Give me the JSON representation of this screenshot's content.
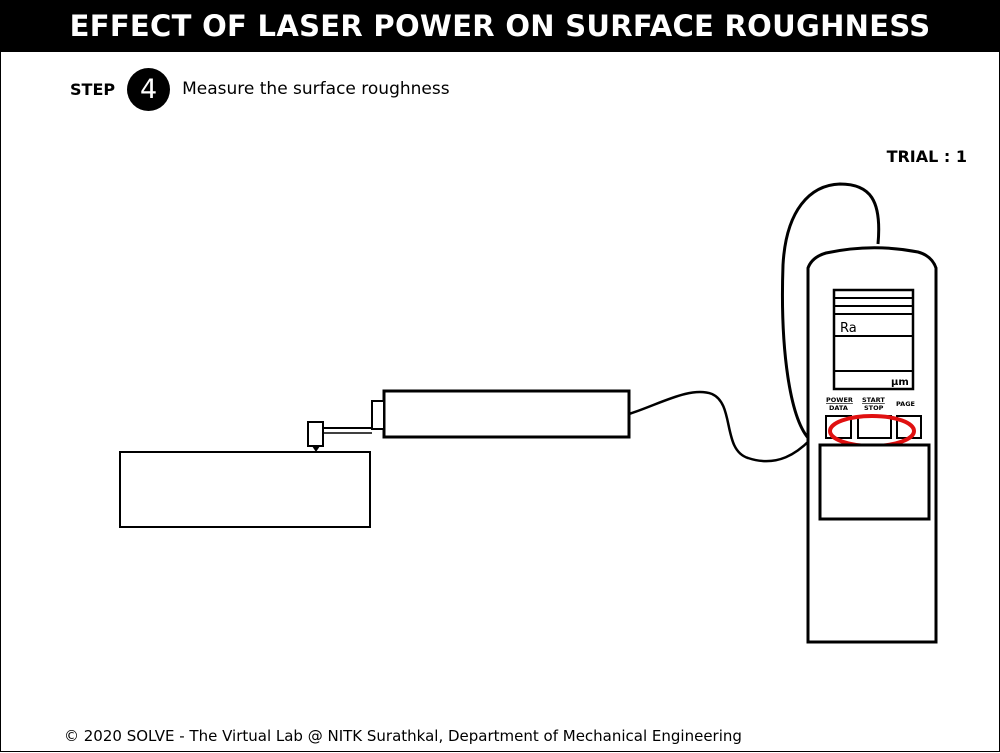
{
  "header": {
    "title": "EFFECT OF LASER POWER ON SURFACE ROUGHNESS"
  },
  "step": {
    "label": "STEP",
    "number": "4",
    "instruction": "Measure the surface roughness"
  },
  "trial": {
    "text": "TRIAL : 1"
  },
  "tester": {
    "display_param": "Ra",
    "display_unit": "µm",
    "button_power": "POWER",
    "button_data": "DATA",
    "button_start": "START",
    "button_stop": "STOP",
    "button_page": "PAGE",
    "highlight_color": "#e01010"
  },
  "footer": {
    "text": "© 2020 SOLVE - The Virtual Lab @ NITK Surathkal, Department of Mechanical Engineering"
  }
}
